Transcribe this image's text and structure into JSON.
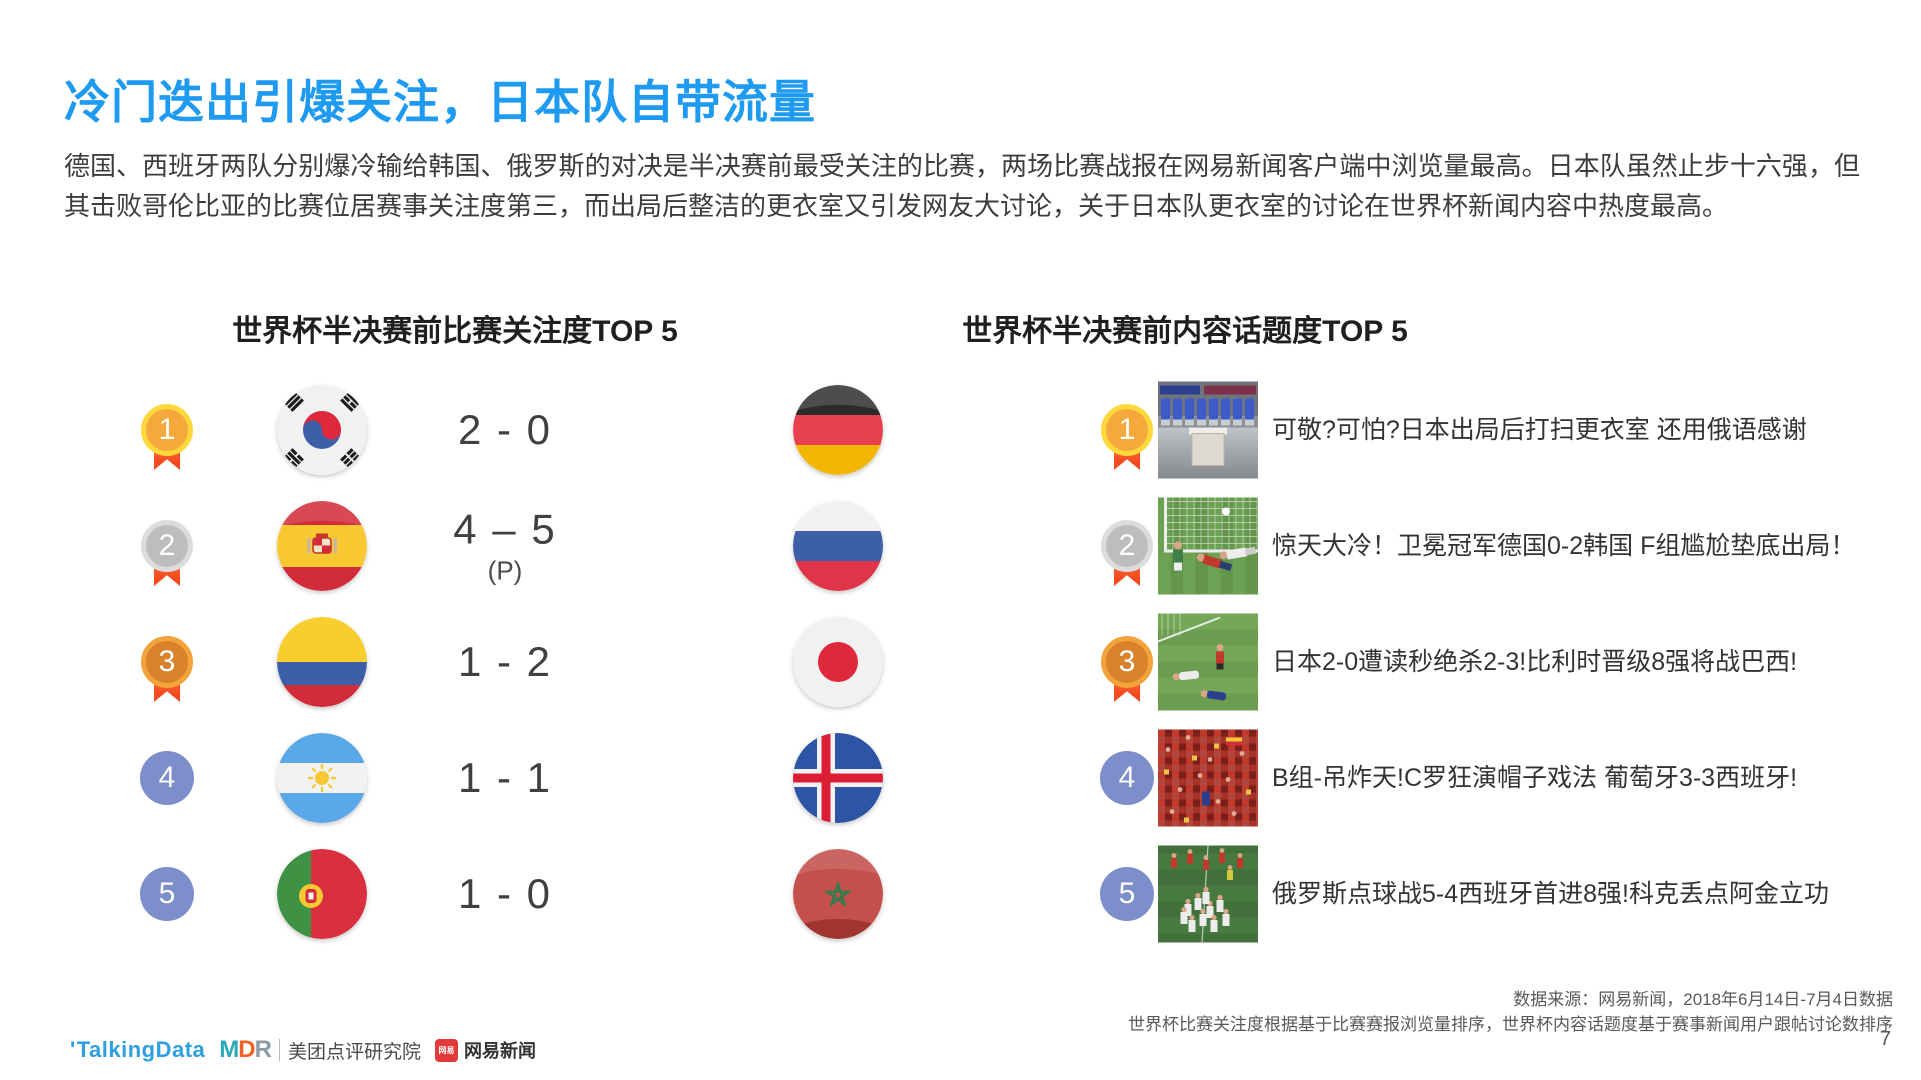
{
  "slide": {
    "title": "冷门迭出引爆关注，日本队自带流量",
    "body": "德国、西班牙两队分别爆冷输给韩国、俄罗斯的对决是半决赛前最受关注的比赛，两场比赛战报在网易新闻客户端中浏览量最高。日本队虽然止步十六强，但其击败哥伦比亚的比赛位居赛事关注度第三，而出局后整洁的更衣室又引发网友大讨论，关于日本队更衣室的讨论在世界杯新闻内容中热度最高。",
    "page_number": "7"
  },
  "left_panel": {
    "title": "世界杯半决赛前比赛关注度TOP 5",
    "rows": [
      {
        "rank": "1",
        "medal": "gold",
        "home_flag": "south-korea",
        "home_team": "韩国",
        "score": "2 - 0",
        "note": "",
        "away_flag": "germany",
        "away_team": "德国"
      },
      {
        "rank": "2",
        "medal": "silver",
        "home_flag": "spain",
        "home_team": "西班牙",
        "score": "4 – 5",
        "note": "(P)",
        "away_flag": "russia",
        "away_team": "俄罗斯"
      },
      {
        "rank": "3",
        "medal": "bronze",
        "home_flag": "colombia",
        "home_team": "哥伦比亚",
        "score": "1 - 2",
        "note": "",
        "away_flag": "japan",
        "away_team": "日本"
      },
      {
        "rank": "4",
        "medal": "plain",
        "home_flag": "argentina",
        "home_team": "阿根廷",
        "score": "1 - 1",
        "note": "",
        "away_flag": "iceland",
        "away_team": "冰岛"
      },
      {
        "rank": "5",
        "medal": "plain",
        "home_flag": "portugal",
        "home_team": "葡萄牙",
        "score": "1 - 0",
        "note": "",
        "away_flag": "morocco",
        "away_team": "摩洛哥"
      }
    ]
  },
  "right_panel": {
    "title": "世界杯半决赛前内容话题度TOP 5",
    "rows": [
      {
        "rank": "1",
        "medal": "gold",
        "thumb": "locker-room",
        "headline": "可敬?可怕?日本出局后打扫更衣室 还用俄语感谢"
      },
      {
        "rank": "2",
        "medal": "silver",
        "thumb": "germany-korea-goal",
        "headline": "惊天大冷！卫冕冠军德国0-2韩国 F组尴尬垫底出局！"
      },
      {
        "rank": "3",
        "medal": "bronze",
        "thumb": "japan-belgium-pitch",
        "headline": "日本2-0遭读秒绝杀2-3!比利时晋级8强将战巴西!"
      },
      {
        "rank": "4",
        "medal": "plain",
        "thumb": "portugal-spain-crowd",
        "headline": "B组-吊炸天!C罗狂演帽子戏法 葡萄牙3-3西班牙!"
      },
      {
        "rank": "5",
        "medal": "plain",
        "thumb": "russia-spain-celebration",
        "headline": "俄罗斯点球战5-4西班牙首进8强!科克丢点阿金立功"
      }
    ]
  },
  "footer": {
    "source_line1": "数据来源：网易新闻，2018年6月14日-7月4日数据",
    "source_line2": "世界杯比赛关注度根据基于比赛赛报浏览量排序，世界杯内容话题度基于赛事新闻用户跟帖讨论数排序",
    "logos": {
      "talkingdata": "TalkingData",
      "mdr": "MDR",
      "meituan": "美团点评研究院",
      "netease_badge": "网易",
      "netease": "网易新闻"
    }
  },
  "colors": {
    "title_blue": "#1E9BF0",
    "rank_plain_blue": "#7D8FCB",
    "medal_gold": "#FFD83B",
    "medal_silver": "#DCDCDC",
    "medal_bronze": "#F2A33C",
    "ribbon_orange": "#F4481F",
    "netease_red": "#E23A3A"
  }
}
